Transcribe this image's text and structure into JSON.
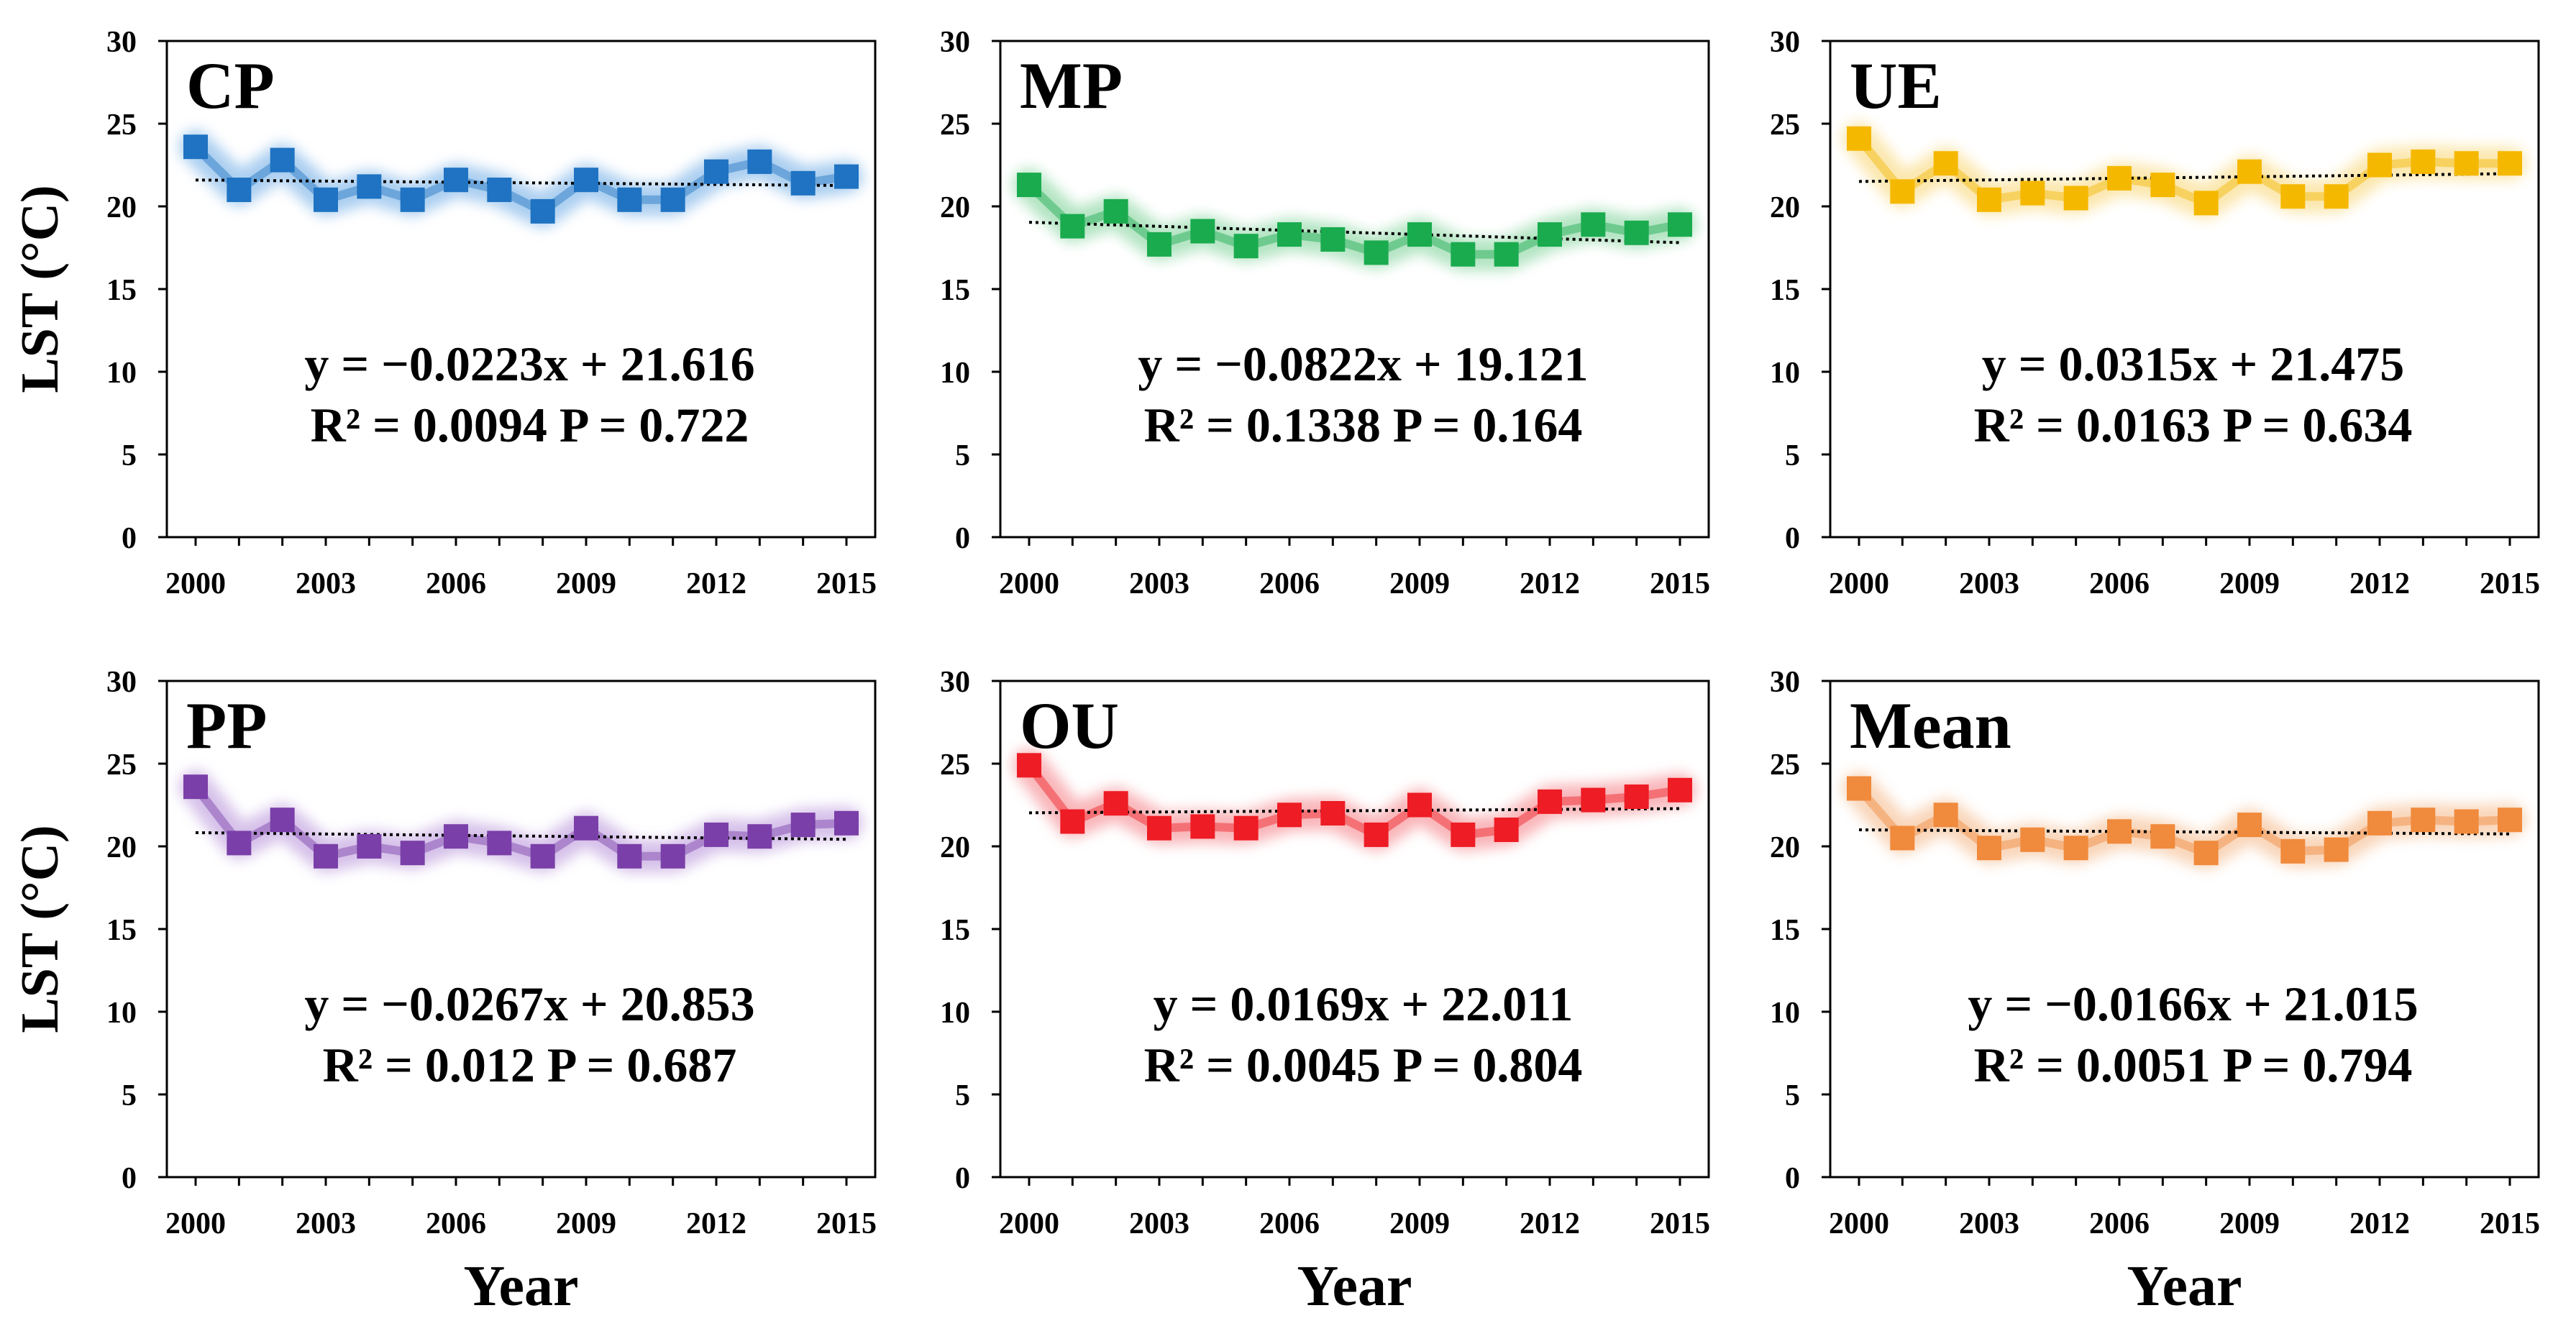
{
  "figure": {
    "y_axis_title": "LST (°C)",
    "x_axis_title": "Year"
  },
  "chart_data": [
    {
      "type": "line",
      "title": "CP",
      "color": "#1f73c2",
      "glow": "#9cc6ee",
      "x": [
        2000,
        2001,
        2002,
        2003,
        2004,
        2005,
        2006,
        2007,
        2008,
        2009,
        2010,
        2011,
        2012,
        2013,
        2014,
        2015
      ],
      "values": [
        23.6,
        21.0,
        22.8,
        20.4,
        21.2,
        20.4,
        21.6,
        21.0,
        19.7,
        21.6,
        20.4,
        20.4,
        22.1,
        22.7,
        21.4,
        21.8
      ],
      "trend": {
        "slope": -0.0223,
        "intercept": 21.616
      },
      "equation": "y = −0.0223x + 21.616",
      "stats": "R² = 0.0094 P = 0.722",
      "xlabel": "",
      "ylabel": "LST (°C)",
      "xticks": [
        "2000",
        "2003",
        "2006",
        "2009",
        "2012",
        "2015"
      ],
      "yticks": [
        "0",
        "5",
        "10",
        "15",
        "20",
        "25",
        "30"
      ],
      "ylim": [
        0,
        30
      ]
    },
    {
      "type": "line",
      "title": "MP",
      "color": "#1aab4f",
      "glow": "#a6e0b8",
      "x": [
        2000,
        2001,
        2002,
        2003,
        2004,
        2005,
        2006,
        2007,
        2008,
        2009,
        2010,
        2011,
        2012,
        2013,
        2014,
        2015
      ],
      "values": [
        21.3,
        18.8,
        19.7,
        17.7,
        18.5,
        17.6,
        18.3,
        18.0,
        17.2,
        18.3,
        17.1,
        17.1,
        18.3,
        18.9,
        18.4,
        18.9
      ],
      "trend": {
        "slope": -0.0822,
        "intercept": 19.121
      },
      "equation": "y = −0.0822x + 19.121",
      "stats": "R² = 0.1338 P = 0.164",
      "xlabel": "",
      "ylabel": "",
      "xticks": [
        "2000",
        "2003",
        "2006",
        "2009",
        "2012",
        "2015"
      ],
      "yticks": [
        "0",
        "5",
        "10",
        "15",
        "20",
        "25",
        "30"
      ],
      "ylim": [
        0,
        30
      ]
    },
    {
      "type": "line",
      "title": "UE",
      "color": "#f5b800",
      "glow": "#fbe3a0",
      "x": [
        2000,
        2001,
        2002,
        2003,
        2004,
        2005,
        2006,
        2007,
        2008,
        2009,
        2010,
        2011,
        2012,
        2013,
        2014,
        2015
      ],
      "values": [
        24.1,
        20.9,
        22.6,
        20.4,
        20.8,
        20.5,
        21.7,
        21.3,
        20.2,
        22.1,
        20.6,
        20.6,
        22.5,
        22.7,
        22.6,
        22.6
      ],
      "trend": {
        "slope": 0.0315,
        "intercept": 21.475
      },
      "equation": "y = 0.0315x + 21.475",
      "stats": "R² = 0.0163 P = 0.634",
      "xlabel": "",
      "ylabel": "",
      "xticks": [
        "2000",
        "2003",
        "2006",
        "2009",
        "2012",
        "2015"
      ],
      "yticks": [
        "0",
        "5",
        "10",
        "15",
        "20",
        "25",
        "30"
      ],
      "ylim": [
        0,
        30
      ]
    },
    {
      "type": "line",
      "title": "PP",
      "color": "#7a3fa8",
      "glow": "#cfb6e6",
      "x": [
        2000,
        2001,
        2002,
        2003,
        2004,
        2005,
        2006,
        2007,
        2008,
        2009,
        2010,
        2011,
        2012,
        2013,
        2014,
        2015
      ],
      "values": [
        23.6,
        20.2,
        21.6,
        19.4,
        20.0,
        19.6,
        20.6,
        20.2,
        19.4,
        21.1,
        19.4,
        19.4,
        20.7,
        20.6,
        21.3,
        21.4
      ],
      "trend": {
        "slope": -0.0267,
        "intercept": 20.853
      },
      "equation": "y = −0.0267x + 20.853",
      "stats": "R² = 0.012 P = 0.687",
      "xlabel": "Year",
      "ylabel": "LST (°C)",
      "xticks": [
        "2000",
        "2003",
        "2006",
        "2009",
        "2012",
        "2015"
      ],
      "yticks": [
        "0",
        "5",
        "10",
        "15",
        "20",
        "25",
        "30"
      ],
      "ylim": [
        0,
        30
      ]
    },
    {
      "type": "line",
      "title": "OU",
      "color": "#ee1c24",
      "glow": "#f8a9ad",
      "x": [
        2000,
        2001,
        2002,
        2003,
        2004,
        2005,
        2006,
        2007,
        2008,
        2009,
        2010,
        2011,
        2012,
        2013,
        2014,
        2015
      ],
      "values": [
        24.9,
        21.5,
        22.6,
        21.1,
        21.2,
        21.1,
        21.9,
        22.0,
        20.7,
        22.5,
        20.7,
        21.0,
        22.7,
        22.8,
        23.0,
        23.4
      ],
      "trend": {
        "slope": 0.0169,
        "intercept": 22.011
      },
      "equation": "y = 0.0169x + 22.011",
      "stats": "R² = 0.0045 P = 0.804",
      "xlabel": "Year",
      "ylabel": "",
      "xticks": [
        "2000",
        "2003",
        "2006",
        "2009",
        "2012",
        "2015"
      ],
      "yticks": [
        "0",
        "5",
        "10",
        "15",
        "20",
        "25",
        "30"
      ],
      "ylim": [
        0,
        30
      ]
    },
    {
      "type": "line",
      "title": "Mean",
      "color": "#f08a3c",
      "glow": "#f8cfae",
      "x": [
        2000,
        2001,
        2002,
        2003,
        2004,
        2005,
        2006,
        2007,
        2008,
        2009,
        2010,
        2011,
        2012,
        2013,
        2014,
        2015
      ],
      "values": [
        23.5,
        20.5,
        21.9,
        19.9,
        20.4,
        19.9,
        20.9,
        20.6,
        19.6,
        21.3,
        19.7,
        19.8,
        21.4,
        21.6,
        21.5,
        21.6
      ],
      "trend": {
        "slope": -0.0166,
        "intercept": 21.015
      },
      "equation": "y = −0.0166x + 21.015",
      "stats": "R² = 0.0051 P = 0.794",
      "xlabel": "Year",
      "ylabel": "",
      "xticks": [
        "2000",
        "2003",
        "2006",
        "2009",
        "2012",
        "2015"
      ],
      "yticks": [
        "0",
        "5",
        "10",
        "15",
        "20",
        "25",
        "30"
      ],
      "ylim": [
        0,
        30
      ]
    }
  ]
}
